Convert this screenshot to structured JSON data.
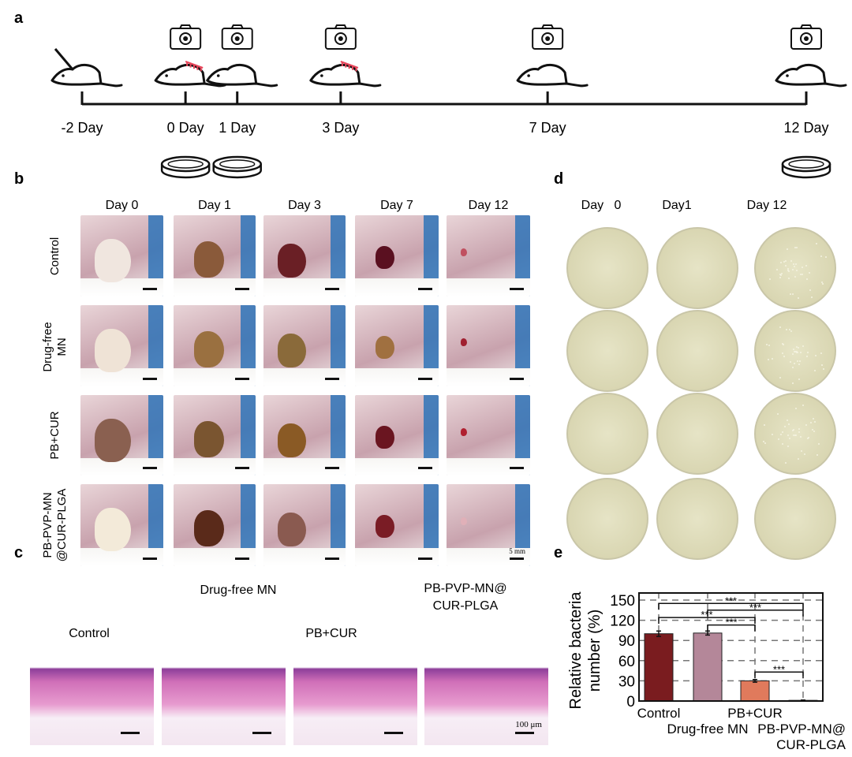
{
  "panels": {
    "a": "a",
    "b": "b",
    "c": "c",
    "d": "d",
    "e": "e"
  },
  "timeline": {
    "days": [
      {
        "label": "-2 Day",
        "day": -2,
        "camera": false,
        "dish": false,
        "syringe": true,
        "mn": false
      },
      {
        "label": "0 Day",
        "day": 0,
        "camera": true,
        "dish": true,
        "syringe": false,
        "mn": true
      },
      {
        "label": "1 Day",
        "day": 1,
        "camera": true,
        "dish": true,
        "syringe": false,
        "mn": false
      },
      {
        "label": "3 Day",
        "day": 3,
        "camera": true,
        "dish": false,
        "syringe": false,
        "mn": true
      },
      {
        "label": "7 Day",
        "day": 7,
        "camera": true,
        "dish": false,
        "syringe": false,
        "mn": false
      },
      {
        "label": "12 Day",
        "day": 12,
        "camera": true,
        "dish": true,
        "syringe": false,
        "mn": false
      }
    ],
    "icons": [
      "mouse-icon",
      "camera-icon",
      "petri-dish-icon",
      "syringe-icon",
      "microneedle-patch-icon"
    ],
    "mn_color": "#e8455a"
  },
  "panel_b": {
    "columns": [
      "Day 0",
      "Day 1",
      "Day 3",
      "Day 7",
      "Day 12"
    ],
    "rows": [
      [
        "Control"
      ],
      [
        "Drug-free",
        "MN"
      ],
      [
        "PB+CUR"
      ],
      [
        "PB-PVP-MN",
        "@CUR-PLGA"
      ]
    ],
    "scale_bar": "5 mm"
  },
  "panel_c": {
    "labels": [
      [
        "Control"
      ],
      [
        "Drug-free MN"
      ],
      [
        "PB+CUR"
      ],
      [
        "PB-PVP-MN@",
        "CUR-PLGA"
      ]
    ],
    "scale_bar": "100 μm"
  },
  "panel_d": {
    "columns": [
      "Day   0",
      "Day1",
      "Day 12"
    ]
  },
  "chart_data": {
    "type": "bar",
    "categories": [
      "Control",
      "Drug-free MN",
      "PB+CUR",
      "PB-PVP-MN@ CUR-PLGA"
    ],
    "category_lines": [
      [
        "Control"
      ],
      [
        "Drug-free MN"
      ],
      [
        "PB+CUR"
      ],
      [
        "PB-PVP-MN@",
        "CUR-PLGA"
      ]
    ],
    "values": [
      100,
      101,
      30,
      1
    ],
    "errors": [
      4,
      3,
      2,
      0.5
    ],
    "colors": [
      "#7a1c1f",
      "#b48799",
      "#e07a5c",
      "#7a1c1f"
    ],
    "ylabel": [
      "Relative bacteria",
      "number (%)"
    ],
    "ylim": [
      0,
      155
    ],
    "yticks": [
      0,
      30,
      60,
      90,
      120,
      150
    ],
    "grid": "dashed",
    "significance": [
      {
        "from": 0,
        "to": 3,
        "y": 145,
        "label": "***"
      },
      {
        "from": 1,
        "to": 3,
        "y": 135,
        "label": "***"
      },
      {
        "from": 0,
        "to": 2,
        "y": 124,
        "label": "***"
      },
      {
        "from": 1,
        "to": 2,
        "y": 113,
        "label": "***"
      },
      {
        "from": 2,
        "to": 3,
        "y": 43,
        "label": "***"
      }
    ]
  }
}
